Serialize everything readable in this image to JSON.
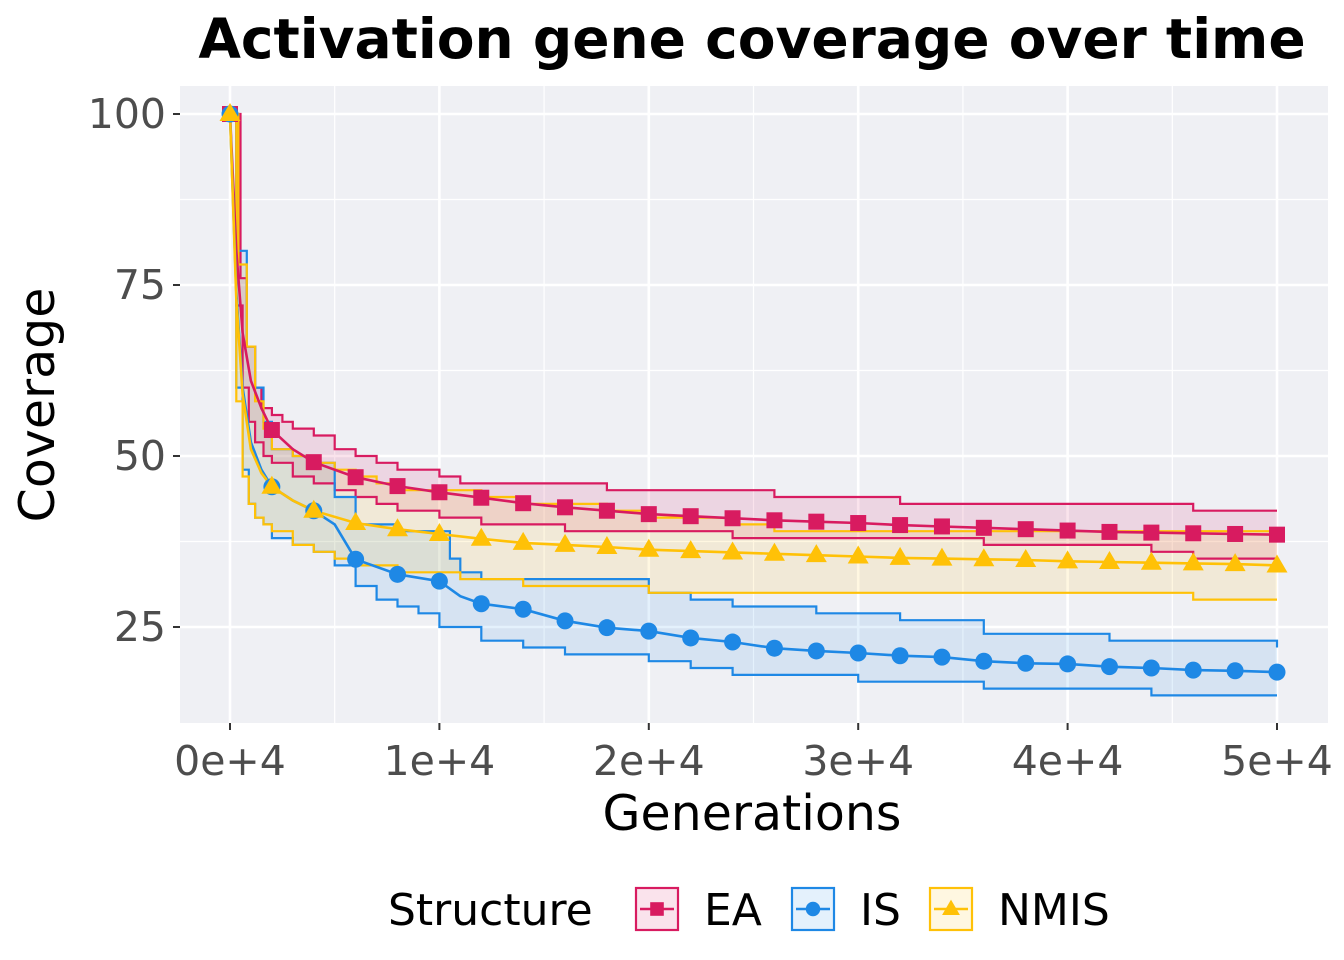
{
  "chart_data": {
    "type": "line",
    "title": "Activation gene coverage over time",
    "xlabel": "Generations",
    "ylabel": "Coverage",
    "xlim": [
      -2400,
      50600
    ],
    "ylim": [
      11,
      104
    ],
    "x_ticks": [
      0,
      10000,
      20000,
      30000,
      40000,
      50000
    ],
    "x_tick_labels": [
      "0e+4",
      "1e+4",
      "2e+4",
      "3e+4",
      "4e+4",
      "5e+4"
    ],
    "y_ticks": [
      25,
      50,
      75,
      100
    ],
    "y_tick_labels": [
      "25",
      "50",
      "75",
      "100"
    ],
    "grid": true,
    "legend": {
      "title": "Structure",
      "position": "bottom",
      "entries": [
        "EA",
        "IS",
        "NMIS"
      ]
    },
    "marker_x": [
      0,
      2000,
      4000,
      6000,
      8000,
      10000,
      12000,
      14000,
      16000,
      18000,
      20000,
      22000,
      24000,
      26000,
      28000,
      30000,
      32000,
      34000,
      36000,
      38000,
      40000,
      42000,
      44000,
      46000,
      48000,
      50000
    ],
    "series": [
      {
        "name": "EA",
        "color": "#d81b60",
        "fill": "#d81b60",
        "marker": "square",
        "mean_x": [
          0,
          300,
          600,
          1000,
          1500,
          2000,
          3000,
          4000,
          6000,
          8000,
          10000,
          12000,
          14000,
          16000,
          18000,
          20000,
          22000,
          24000,
          26000,
          28000,
          30000,
          32000,
          34000,
          36000,
          38000,
          40000,
          42000,
          44000,
          46000,
          48000,
          50000
        ],
        "mean": [
          100,
          80,
          68,
          61,
          57,
          53.8,
          51,
          49.1,
          46.9,
          45.6,
          44.7,
          43.9,
          43.1,
          42.5,
          42.0,
          41.5,
          41.2,
          40.9,
          40.6,
          40.4,
          40.2,
          39.9,
          39.7,
          39.5,
          39.3,
          39.1,
          38.9,
          38.8,
          38.7,
          38.6,
          38.5
        ],
        "upper_x": [
          0,
          500,
          800,
          1200,
          1500,
          2000,
          2500,
          3000,
          4000,
          5000,
          6000,
          7000,
          8000,
          10000,
          11000,
          15000,
          18000,
          21000,
          26000,
          32000,
          40000,
          46000,
          50000
        ],
        "upper": [
          100,
          76,
          66,
          60,
          57,
          56,
          55,
          54,
          53,
          51,
          50,
          49,
          48,
          47,
          46,
          46,
          45,
          45,
          44,
          43,
          43,
          42,
          42
        ],
        "lower_x": [
          0,
          300,
          600,
          900,
          1200,
          1600,
          2000,
          3000,
          4000,
          5000,
          6000,
          7000,
          8000,
          10000,
          12000,
          14000,
          16000,
          20000,
          24000,
          30000,
          36000,
          40000,
          44000,
          46000,
          50000
        ],
        "lower": [
          100,
          72,
          60,
          55,
          52,
          50,
          49,
          47,
          46,
          45,
          44,
          43,
          42,
          41,
          40,
          40,
          39,
          39,
          38,
          38,
          37,
          37,
          36,
          35,
          35
        ]
      },
      {
        "name": "IS",
        "color": "#1e88e5",
        "fill": "#1e88e5",
        "marker": "circle",
        "mean_x": [
          0,
          300,
          600,
          1000,
          1500,
          2000,
          3000,
          4000,
          5000,
          6000,
          8000,
          10000,
          11000,
          12000,
          14000,
          16000,
          18000,
          20000,
          22000,
          24000,
          26000,
          28000,
          30000,
          32000,
          34000,
          36000,
          38000,
          40000,
          42000,
          44000,
          46000,
          48000,
          50000
        ],
        "mean": [
          100,
          74,
          60,
          52,
          48,
          45.5,
          43.5,
          42,
          40,
          34.9,
          32.7,
          31.7,
          29.5,
          28.4,
          27.6,
          25.9,
          24.9,
          24.4,
          23.4,
          22.8,
          21.9,
          21.5,
          21.2,
          20.8,
          20.6,
          20.0,
          19.7,
          19.6,
          19.2,
          19.0,
          18.7,
          18.6,
          18.4
        ],
        "upper_x": [
          0,
          400,
          800,
          1200,
          1600,
          2000,
          3000,
          4000,
          5000,
          6000,
          8000,
          10000,
          10500,
          11000,
          12000,
          16000,
          20000,
          22000,
          24000,
          28000,
          32000,
          36000,
          42000,
          50000
        ],
        "upper": [
          100,
          80,
          66,
          60,
          55,
          51,
          50,
          49,
          44,
          40,
          39,
          39,
          35,
          33,
          32,
          32,
          30,
          29,
          28,
          27,
          26,
          24,
          23,
          22
        ],
        "lower_x": [
          0,
          300,
          600,
          900,
          1200,
          1600,
          2000,
          3000,
          4000,
          5000,
          6000,
          7000,
          8000,
          9000,
          10000,
          12000,
          14000,
          16000,
          20000,
          22000,
          24000,
          30000,
          36000,
          44000,
          50000
        ],
        "lower": [
          100,
          60,
          48,
          43,
          41,
          40,
          38,
          37,
          36,
          34,
          31,
          29,
          28,
          27,
          25,
          23,
          22,
          21,
          20,
          19,
          18,
          17,
          16,
          15,
          15
        ]
      },
      {
        "name": "NMIS",
        "color": "#ffc107",
        "fill": "#ffc107",
        "marker": "triangle",
        "mean_x": [
          0,
          300,
          600,
          1000,
          1500,
          2000,
          3000,
          4000,
          6000,
          8000,
          10000,
          12000,
          14000,
          16000,
          18000,
          20000,
          22000,
          24000,
          26000,
          28000,
          30000,
          32000,
          34000,
          36000,
          38000,
          40000,
          42000,
          44000,
          46000,
          48000,
          50000
        ],
        "mean": [
          100,
          73,
          59,
          51,
          47.5,
          45.5,
          43.5,
          42.0,
          40.2,
          39.3,
          38.6,
          37.9,
          37.3,
          37.0,
          36.7,
          36.3,
          36.1,
          35.9,
          35.7,
          35.5,
          35.3,
          35.1,
          35.0,
          34.9,
          34.8,
          34.6,
          34.5,
          34.4,
          34.3,
          34.2,
          34.0
        ],
        "upper_x": [
          0,
          400,
          800,
          1200,
          1600,
          2000,
          3000,
          4000,
          5000,
          6000,
          7000,
          8000,
          10000,
          12000,
          14000,
          18000,
          20000,
          22000,
          24000,
          26000,
          30000,
          50000
        ],
        "upper": [
          100,
          78,
          66,
          58,
          54,
          51,
          50,
          49,
          48,
          47,
          46,
          45,
          45,
          44,
          43,
          42,
          41,
          41,
          40,
          39,
          39,
          39
        ],
        "lower_x": [
          0,
          300,
          600,
          900,
          1200,
          1600,
          2000,
          3000,
          4000,
          5000,
          6000,
          8000,
          10000,
          11000,
          14000,
          16000,
          20000,
          30000,
          46000,
          50000
        ],
        "lower": [
          100,
          58,
          47,
          43,
          41,
          40,
          39,
          37,
          36,
          35,
          34,
          33,
          33,
          32,
          31,
          31,
          30,
          30,
          29,
          29
        ]
      }
    ]
  }
}
